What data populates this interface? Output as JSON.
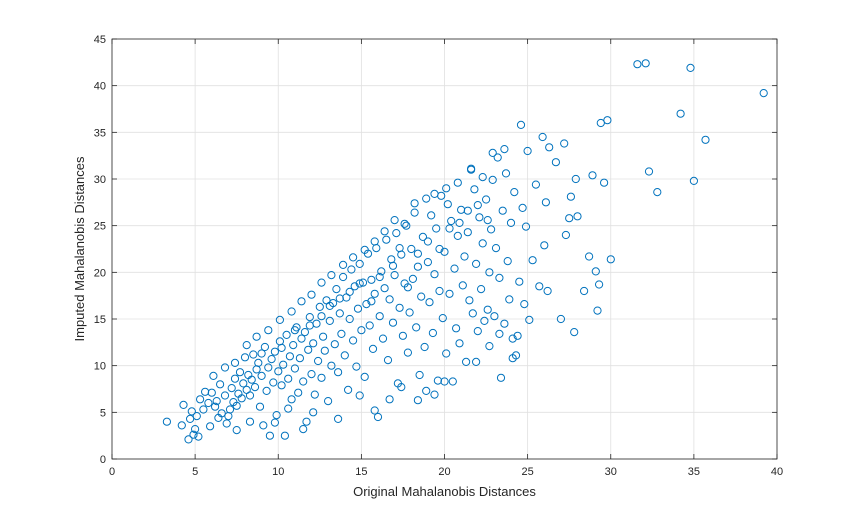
{
  "chart_data": {
    "type": "scatter",
    "title": "",
    "xlabel": "Original Mahalanobis Distances",
    "ylabel": "Imputed Mahalanobis Distances",
    "xlim": [
      0,
      40
    ],
    "ylim": [
      0,
      45
    ],
    "xticks": [
      0,
      5,
      10,
      15,
      20,
      25,
      30,
      35,
      40
    ],
    "yticks": [
      0,
      5,
      10,
      15,
      20,
      25,
      30,
      35,
      40,
      45
    ],
    "xtick_labels": [
      "0",
      "5",
      "10",
      "15",
      "20",
      "25",
      "30",
      "35",
      "40"
    ],
    "ytick_labels": [
      "0",
      "5",
      "10",
      "15",
      "20",
      "25",
      "30",
      "35",
      "40",
      "45"
    ],
    "grid": true,
    "marker": "open-circle",
    "colors": {
      "marker": "#0072bd",
      "grid": "#e0e0e0",
      "axis": "#262626"
    },
    "series": [
      {
        "points": [
          [
            3.3,
            4.0
          ],
          [
            4.2,
            3.6
          ],
          [
            4.3,
            5.8
          ],
          [
            4.6,
            2.1
          ],
          [
            4.7,
            4.3
          ],
          [
            4.8,
            5.1
          ],
          [
            4.9,
            2.6
          ],
          [
            5.0,
            3.2
          ],
          [
            5.2,
            2.4
          ],
          [
            5.1,
            4.6
          ],
          [
            5.3,
            6.4
          ],
          [
            5.5,
            5.3
          ],
          [
            5.6,
            7.2
          ],
          [
            5.8,
            6.0
          ],
          [
            6.0,
            7.1
          ],
          [
            6.2,
            5.6
          ],
          [
            6.3,
            6.2
          ],
          [
            6.5,
            8.0
          ],
          [
            6.6,
            4.9
          ],
          [
            6.8,
            6.8
          ],
          [
            6.9,
            3.8
          ],
          [
            7.0,
            4.6
          ],
          [
            7.1,
            5.3
          ],
          [
            7.2,
            7.6
          ],
          [
            7.3,
            6.1
          ],
          [
            7.4,
            8.6
          ],
          [
            7.5,
            5.7
          ],
          [
            7.6,
            7.0
          ],
          [
            7.7,
            9.3
          ],
          [
            7.8,
            6.5
          ],
          [
            7.9,
            8.1
          ],
          [
            8.0,
            10.9
          ],
          [
            8.1,
            7.4
          ],
          [
            8.2,
            9.0
          ],
          [
            8.3,
            6.8
          ],
          [
            8.4,
            8.5
          ],
          [
            8.5,
            11.2
          ],
          [
            8.6,
            7.7
          ],
          [
            8.7,
            9.6
          ],
          [
            8.8,
            10.3
          ],
          [
            8.9,
            5.6
          ],
          [
            9.0,
            8.9
          ],
          [
            9.1,
            3.6
          ],
          [
            9.2,
            12.0
          ],
          [
            9.3,
            7.3
          ],
          [
            9.4,
            9.8
          ],
          [
            9.5,
            2.5
          ],
          [
            9.6,
            10.7
          ],
          [
            9.7,
            8.2
          ],
          [
            9.8,
            11.5
          ],
          [
            9.9,
            4.7
          ],
          [
            10.0,
            9.4
          ],
          [
            10.1,
            12.6
          ],
          [
            10.2,
            7.9
          ],
          [
            10.3,
            10.1
          ],
          [
            10.4,
            2.5
          ],
          [
            10.5,
            13.3
          ],
          [
            10.6,
            8.6
          ],
          [
            10.7,
            11.0
          ],
          [
            10.8,
            6.4
          ],
          [
            10.9,
            12.2
          ],
          [
            11.0,
            9.7
          ],
          [
            11.1,
            14.1
          ],
          [
            11.2,
            7.1
          ],
          [
            11.3,
            10.8
          ],
          [
            11.4,
            12.9
          ],
          [
            11.5,
            8.3
          ],
          [
            11.6,
            13.6
          ],
          [
            11.7,
            4.0
          ],
          [
            11.8,
            11.7
          ],
          [
            11.9,
            15.2
          ],
          [
            12.0,
            9.1
          ],
          [
            12.1,
            12.4
          ],
          [
            12.2,
            6.9
          ],
          [
            12.3,
            14.5
          ],
          [
            12.4,
            10.5
          ],
          [
            12.5,
            16.3
          ],
          [
            12.6,
            8.7
          ],
          [
            12.7,
            13.1
          ],
          [
            12.8,
            11.6
          ],
          [
            12.9,
            17.0
          ],
          [
            13.0,
            6.2
          ],
          [
            13.1,
            14.8
          ],
          [
            13.2,
            10.0
          ],
          [
            13.3,
            16.7
          ],
          [
            13.4,
            12.3
          ],
          [
            13.5,
            18.2
          ],
          [
            13.6,
            9.3
          ],
          [
            13.7,
            15.6
          ],
          [
            13.8,
            13.4
          ],
          [
            13.9,
            19.5
          ],
          [
            14.0,
            11.1
          ],
          [
            14.1,
            17.3
          ],
          [
            14.2,
            7.4
          ],
          [
            14.3,
            15.0
          ],
          [
            14.4,
            20.3
          ],
          [
            14.5,
            12.7
          ],
          [
            14.6,
            18.5
          ],
          [
            14.7,
            9.9
          ],
          [
            14.8,
            16.1
          ],
          [
            14.9,
            20.9
          ],
          [
            15.0,
            13.8
          ],
          [
            15.1,
            18.9
          ],
          [
            15.2,
            8.8
          ],
          [
            15.3,
            16.6
          ],
          [
            15.4,
            22.0
          ],
          [
            15.5,
            14.3
          ],
          [
            15.6,
            19.2
          ],
          [
            15.7,
            11.8
          ],
          [
            15.8,
            17.7
          ],
          [
            15.9,
            22.6
          ],
          [
            16.0,
            4.5
          ],
          [
            16.1,
            15.3
          ],
          [
            16.2,
            20.1
          ],
          [
            16.3,
            12.9
          ],
          [
            16.4,
            18.3
          ],
          [
            16.5,
            23.5
          ],
          [
            16.6,
            10.6
          ],
          [
            16.7,
            17.1
          ],
          [
            16.8,
            21.4
          ],
          [
            16.9,
            14.6
          ],
          [
            17.0,
            19.7
          ],
          [
            17.1,
            24.2
          ],
          [
            17.2,
            8.1
          ],
          [
            17.3,
            16.2
          ],
          [
            17.4,
            21.9
          ],
          [
            17.5,
            13.2
          ],
          [
            17.6,
            18.8
          ],
          [
            17.7,
            25.0
          ],
          [
            17.8,
            11.4
          ],
          [
            17.9,
            15.7
          ],
          [
            18.0,
            22.5
          ],
          [
            18.1,
            19.3
          ],
          [
            18.2,
            26.4
          ],
          [
            18.3,
            14.1
          ],
          [
            18.4,
            20.6
          ],
          [
            18.5,
            9.0
          ],
          [
            18.6,
            17.4
          ],
          [
            18.7,
            23.8
          ],
          [
            18.8,
            12.0
          ],
          [
            18.9,
            7.3
          ],
          [
            19.0,
            21.1
          ],
          [
            19.1,
            16.8
          ],
          [
            19.2,
            26.1
          ],
          [
            19.3,
            13.5
          ],
          [
            19.4,
            19.8
          ],
          [
            19.5,
            24.7
          ],
          [
            19.6,
            8.4
          ],
          [
            19.7,
            18.0
          ],
          [
            19.8,
            28.2
          ],
          [
            19.9,
            15.1
          ],
          [
            20.0,
            22.2
          ],
          [
            20.1,
            11.3
          ],
          [
            20.2,
            27.3
          ],
          [
            20.3,
            17.7
          ],
          [
            20.4,
            25.5
          ],
          [
            20.5,
            8.3
          ],
          [
            20.6,
            20.4
          ],
          [
            20.7,
            14.0
          ],
          [
            20.8,
            23.9
          ],
          [
            20.9,
            12.4
          ],
          [
            21.0,
            26.7
          ],
          [
            21.1,
            18.6
          ],
          [
            21.2,
            21.7
          ],
          [
            21.3,
            10.4
          ],
          [
            21.4,
            24.3
          ],
          [
            21.5,
            17.0
          ],
          [
            21.6,
            31.0
          ],
          [
            21.7,
            15.6
          ],
          [
            21.8,
            28.9
          ],
          [
            21.9,
            20.9
          ],
          [
            22.0,
            13.7
          ],
          [
            22.1,
            25.9
          ],
          [
            22.2,
            18.2
          ],
          [
            22.3,
            23.1
          ],
          [
            22.4,
            14.8
          ],
          [
            22.5,
            27.8
          ],
          [
            22.6,
            16.0
          ],
          [
            22.7,
            20.0
          ],
          [
            22.8,
            24.6
          ],
          [
            22.9,
            29.9
          ],
          [
            23.0,
            15.3
          ],
          [
            23.1,
            22.6
          ],
          [
            23.2,
            32.3
          ],
          [
            23.3,
            19.4
          ],
          [
            23.4,
            8.7
          ],
          [
            23.5,
            26.6
          ],
          [
            23.6,
            14.5
          ],
          [
            23.7,
            30.6
          ],
          [
            23.8,
            21.2
          ],
          [
            23.9,
            17.1
          ],
          [
            24.0,
            25.3
          ],
          [
            24.1,
            12.9
          ],
          [
            24.2,
            28.6
          ],
          [
            24.3,
            11.1
          ],
          [
            24.4,
            13.2
          ],
          [
            24.5,
            19.0
          ],
          [
            24.6,
            35.8
          ],
          [
            24.7,
            26.9
          ],
          [
            24.8,
            16.6
          ],
          [
            24.9,
            24.9
          ],
          [
            25.0,
            33.0
          ],
          [
            25.1,
            14.9
          ],
          [
            25.3,
            21.3
          ],
          [
            25.5,
            29.4
          ],
          [
            25.7,
            18.5
          ],
          [
            25.9,
            34.5
          ],
          [
            26.0,
            22.9
          ],
          [
            26.1,
            27.5
          ],
          [
            26.2,
            18.0
          ],
          [
            26.3,
            33.4
          ],
          [
            26.7,
            31.8
          ],
          [
            27.0,
            15.0
          ],
          [
            27.2,
            33.8
          ],
          [
            27.3,
            24.0
          ],
          [
            27.5,
            25.8
          ],
          [
            27.6,
            28.1
          ],
          [
            27.8,
            13.6
          ],
          [
            27.9,
            30.0
          ],
          [
            28.0,
            26.0
          ],
          [
            28.4,
            18.0
          ],
          [
            28.7,
            21.7
          ],
          [
            28.9,
            30.4
          ],
          [
            29.1,
            20.1
          ],
          [
            29.2,
            15.9
          ],
          [
            29.3,
            18.7
          ],
          [
            29.4,
            36.0
          ],
          [
            29.6,
            29.6
          ],
          [
            29.8,
            36.3
          ],
          [
            30.0,
            21.4
          ],
          [
            31.6,
            42.3
          ],
          [
            32.1,
            42.4
          ],
          [
            32.3,
            30.8
          ],
          [
            32.8,
            28.6
          ],
          [
            34.2,
            37.0
          ],
          [
            34.8,
            41.9
          ],
          [
            35.0,
            29.8
          ],
          [
            35.7,
            34.2
          ],
          [
            39.2,
            39.2
          ],
          [
            5.9,
            3.5
          ],
          [
            6.4,
            4.4
          ],
          [
            7.5,
            3.1
          ],
          [
            8.3,
            4.0
          ],
          [
            9.8,
            3.9
          ],
          [
            10.6,
            5.4
          ],
          [
            11.5,
            3.2
          ],
          [
            12.1,
            5.0
          ],
          [
            13.6,
            4.3
          ],
          [
            14.9,
            6.8
          ],
          [
            15.8,
            5.2
          ],
          [
            16.7,
            6.4
          ],
          [
            17.4,
            7.7
          ],
          [
            18.4,
            6.3
          ],
          [
            19.4,
            6.9
          ],
          [
            20.0,
            8.3
          ],
          [
            21.9,
            10.4
          ],
          [
            22.7,
            12.1
          ],
          [
            23.3,
            13.4
          ],
          [
            24.1,
            10.8
          ],
          [
            6.1,
            8.9
          ],
          [
            6.8,
            9.8
          ],
          [
            7.4,
            10.3
          ],
          [
            8.1,
            12.2
          ],
          [
            8.7,
            13.1
          ],
          [
            9.4,
            13.8
          ],
          [
            10.1,
            14.9
          ],
          [
            10.8,
            15.8
          ],
          [
            11.4,
            16.9
          ],
          [
            12.0,
            17.6
          ],
          [
            12.6,
            18.9
          ],
          [
            13.2,
            19.7
          ],
          [
            13.9,
            20.8
          ],
          [
            14.5,
            21.6
          ],
          [
            15.2,
            22.4
          ],
          [
            15.8,
            23.3
          ],
          [
            16.4,
            24.4
          ],
          [
            17.0,
            25.6
          ],
          [
            17.6,
            25.2
          ],
          [
            18.2,
            27.4
          ],
          [
            18.9,
            27.9
          ],
          [
            19.4,
            28.4
          ],
          [
            20.1,
            29.0
          ],
          [
            20.8,
            29.6
          ],
          [
            21.6,
            31.1
          ],
          [
            22.3,
            30.2
          ],
          [
            22.9,
            32.8
          ],
          [
            23.6,
            33.2
          ],
          [
            9.0,
            11.3
          ],
          [
            10.2,
            11.9
          ],
          [
            11.0,
            13.8
          ],
          [
            11.9,
            14.3
          ],
          [
            12.6,
            15.3
          ],
          [
            13.1,
            16.4
          ],
          [
            13.7,
            17.2
          ],
          [
            14.3,
            17.9
          ],
          [
            14.9,
            18.8
          ],
          [
            15.6,
            16.9
          ],
          [
            16.1,
            19.5
          ],
          [
            16.9,
            20.7
          ],
          [
            17.3,
            22.6
          ],
          [
            17.8,
            18.4
          ],
          [
            18.4,
            22.0
          ],
          [
            19.0,
            23.3
          ],
          [
            19.7,
            22.5
          ],
          [
            20.3,
            24.7
          ],
          [
            20.9,
            25.3
          ],
          [
            21.4,
            26.6
          ],
          [
            22.0,
            27.2
          ],
          [
            22.6,
            25.6
          ]
        ]
      }
    ]
  }
}
